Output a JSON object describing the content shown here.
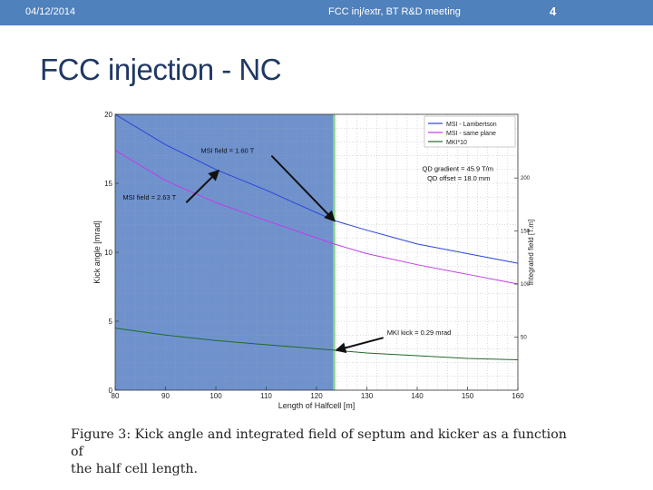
{
  "header": {
    "date": "04/12/2014",
    "meeting": "FCC inj/extr, BT R&D meeting",
    "page_number": "4"
  },
  "slide": {
    "title": "FCC injection - NC"
  },
  "caption": {
    "line1": "Figure 3: Kick angle and integrated field of septum and kicker as a function of",
    "line2": "the half cell length."
  },
  "colors": {
    "header_bar": "#4f81bd",
    "shaded_region": "#5f86c8",
    "lambertson": "#2a44d6",
    "same_plane": "#c23be6",
    "mki": "#1f6a2b",
    "divider": "#8bd08b"
  },
  "chart_data": {
    "type": "line",
    "xlabel": "Length of Halfcell [m]",
    "ylabel": "Kick angle [mrad]",
    "y2label": "Integrated field [T.m]",
    "xlim": [
      80,
      160
    ],
    "ylim": [
      0,
      20
    ],
    "y2lim": [
      0,
      260
    ],
    "xticks": [
      "80",
      "90",
      "100",
      "110",
      "120",
      "130",
      "140",
      "150",
      "160"
    ],
    "yticks": [
      "0",
      "5",
      "10",
      "15",
      "20"
    ],
    "y2ticks": [
      "50",
      "100",
      "150",
      "200"
    ],
    "grid": true,
    "legend_position": "top-right",
    "shaded_range_x": [
      80,
      123.5
    ],
    "series": [
      {
        "name": "MSI - Lambertson",
        "color_key": "lambertson",
        "x": [
          80,
          90,
          100,
          110,
          123.5,
          130,
          140,
          150,
          160
        ],
        "y": [
          20.0,
          17.8,
          16.0,
          14.5,
          12.3,
          11.6,
          10.6,
          9.9,
          9.2
        ]
      },
      {
        "name": "MSI - same plane",
        "color_key": "same_plane",
        "x": [
          80,
          90,
          100,
          110,
          123.5,
          130,
          140,
          150,
          160
        ],
        "y": [
          17.4,
          15.2,
          13.6,
          12.3,
          10.6,
          9.9,
          9.1,
          8.4,
          7.7
        ]
      },
      {
        "name": "MKI*10",
        "color_key": "mki",
        "x": [
          80,
          90,
          100,
          110,
          123.5,
          130,
          140,
          150,
          160
        ],
        "y": [
          4.5,
          4.0,
          3.6,
          3.3,
          2.9,
          2.7,
          2.5,
          2.3,
          2.2
        ]
      }
    ],
    "annotations": [
      {
        "text": "MSI field = 1.60 T",
        "x": 97,
        "y": 17.2,
        "arrow_to": [
          123.5,
          12.3
        ]
      },
      {
        "text": "MSI field = 2.63 T",
        "x": 81.5,
        "y": 13.8,
        "arrow_to": [
          100.5,
          15.9
        ]
      },
      {
        "text": "QD gradient = 45.9 T/m",
        "x": 141,
        "y": 15.9
      },
      {
        "text": "QD offset = 18.0 mm",
        "x": 142,
        "y": 15.2
      },
      {
        "text": "MKI kick = 0.29 mrad",
        "x": 134,
        "y": 4.0,
        "arrow_to": [
          124,
          2.9
        ]
      }
    ]
  }
}
